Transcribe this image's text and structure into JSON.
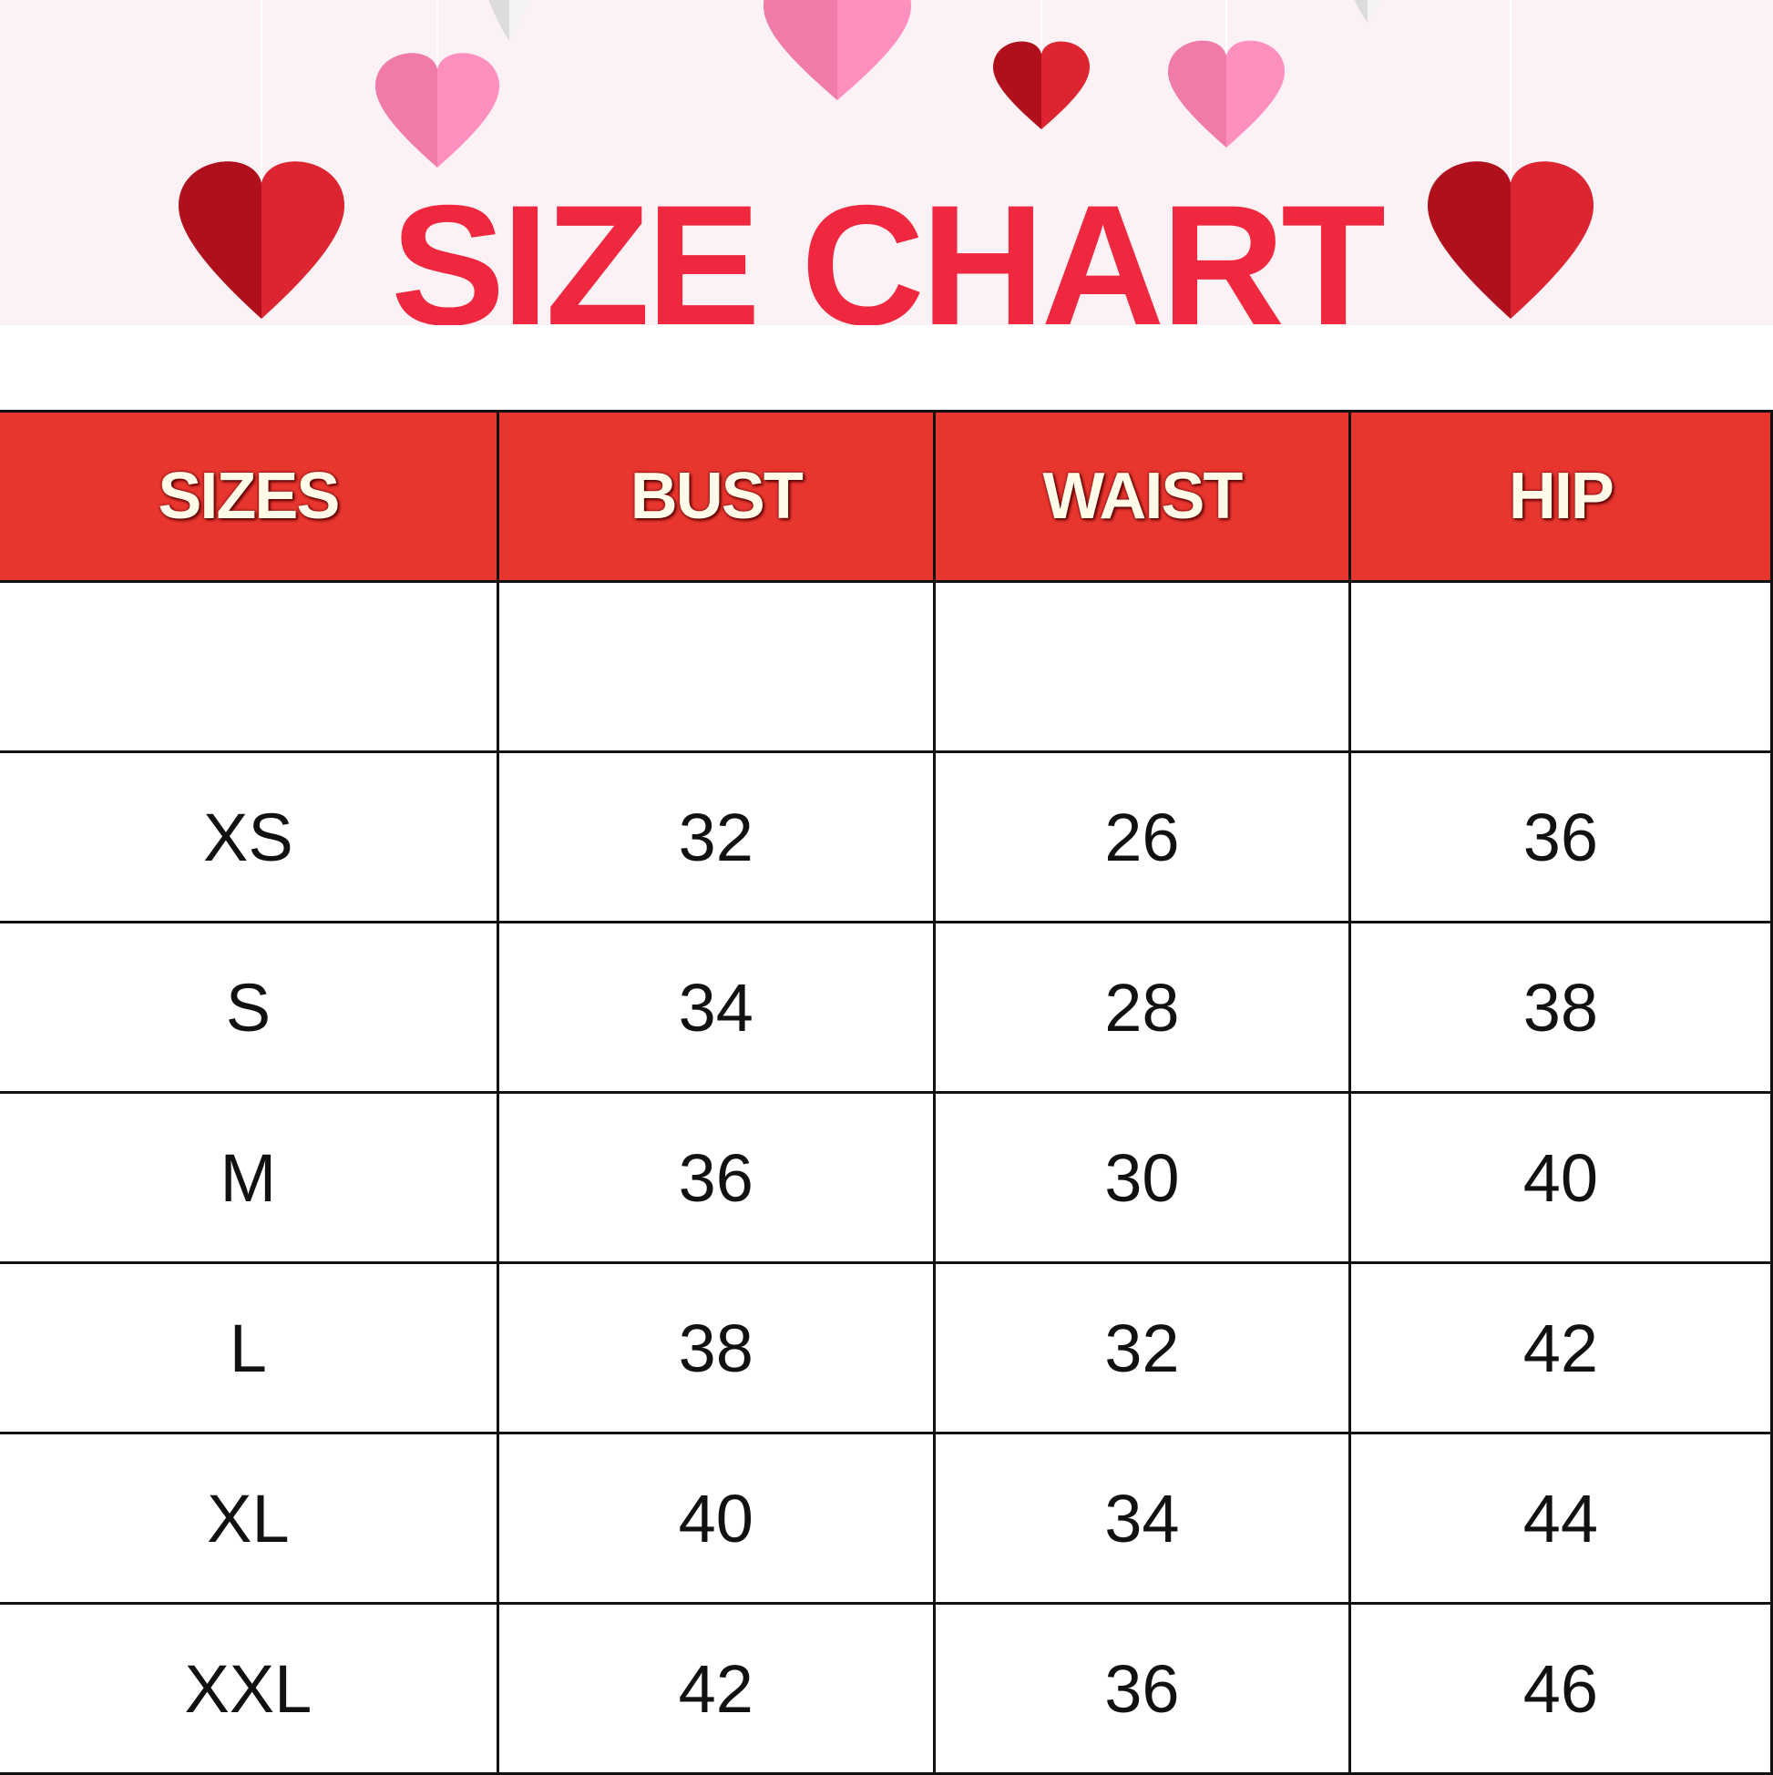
{
  "title": "SIZE CHART",
  "colors": {
    "title": "#f0283f",
    "header_bg": "#e8362f",
    "heart_red": "#dc2530",
    "heart_pink": "#ff8fbf"
  },
  "table": {
    "headers": [
      "SIZES",
      "BUST",
      "WAIST",
      "HIP"
    ],
    "rows": [
      [
        "",
        "",
        "",
        ""
      ],
      [
        "XS",
        "32",
        "26",
        "36"
      ],
      [
        "S",
        "34",
        "28",
        "38"
      ],
      [
        "M",
        "36",
        "30",
        "40"
      ],
      [
        "L",
        "38",
        "32",
        "42"
      ],
      [
        "XL",
        "40",
        "34",
        "44"
      ],
      [
        "XXL",
        "42",
        "36",
        "46"
      ]
    ]
  }
}
